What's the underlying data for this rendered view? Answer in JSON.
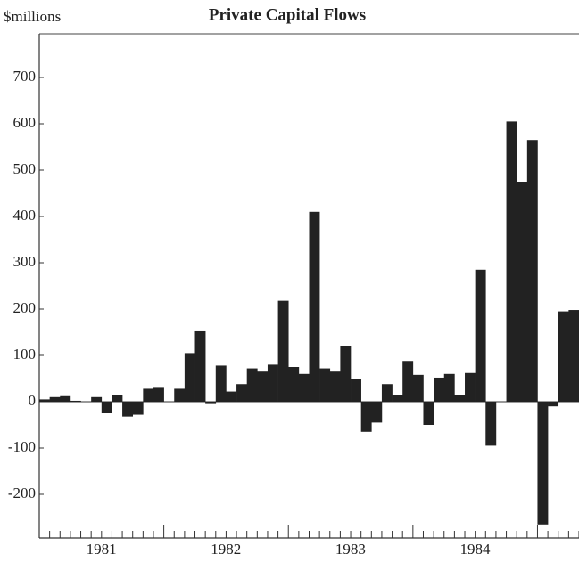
{
  "chart_data": {
    "type": "bar",
    "title": "Private Capital Flows",
    "y_label": "$millions",
    "categories": [
      null,
      null,
      null,
      null,
      null,
      null,
      "1981",
      null,
      null,
      null,
      null,
      null,
      null,
      null,
      null,
      null,
      null,
      null,
      "1982",
      null,
      null,
      null,
      null,
      null,
      null,
      null,
      null,
      null,
      null,
      null,
      "1983",
      null,
      null,
      null,
      null,
      null,
      null,
      null,
      null,
      null,
      null,
      null,
      "1984",
      null,
      null,
      null,
      null,
      null,
      null,
      null,
      null,
      null
    ],
    "values": [
      5,
      10,
      12,
      2,
      0,
      10,
      -25,
      15,
      -32,
      -28,
      28,
      30,
      0,
      28,
      105,
      152,
      -5,
      78,
      22,
      38,
      72,
      65,
      80,
      218,
      75,
      60,
      410,
      72,
      65,
      120,
      50,
      -65,
      -45,
      38,
      15,
      88,
      58,
      -50,
      52,
      60,
      15,
      62,
      285,
      -95,
      0,
      605,
      475,
      565,
      -265,
      -10,
      195,
      198
    ],
    "color": "#222222",
    "ylim": [
      -300,
      800
    ],
    "yticks": [
      -200,
      -100,
      0,
      100,
      200,
      300,
      400,
      500,
      600,
      700
    ]
  }
}
